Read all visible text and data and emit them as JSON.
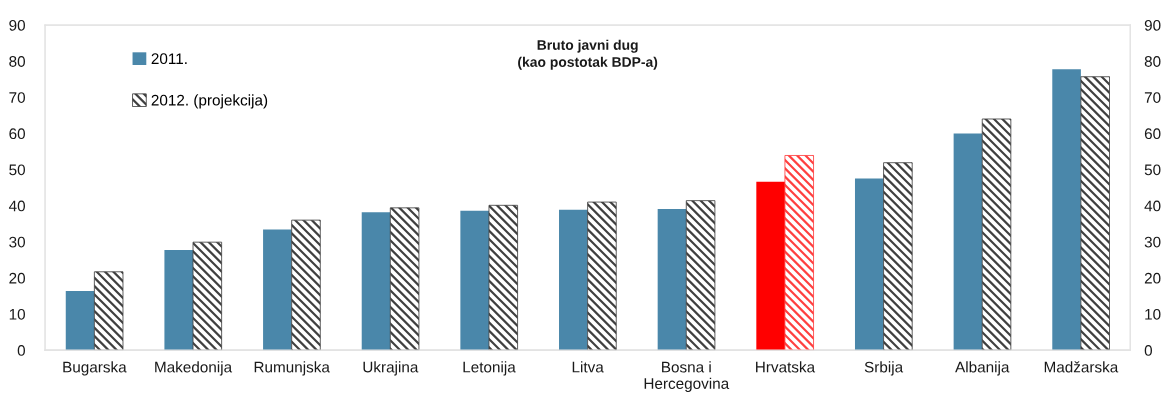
{
  "chart_data": {
    "type": "bar",
    "title": "Bruto javni dug\n(kao postotak BDP-a)",
    "categories": [
      "Bugarska",
      "Makedonija",
      "Rumunjska",
      "Ukrajina",
      "Letonija",
      "Litva",
      "Bosna i\nHercegovina",
      "Hrvatska",
      "Srbija",
      "Albanija",
      "Madžarska"
    ],
    "series": [
      {
        "name": "2011.",
        "color": "#4a87aa",
        "colors": [
          "#4a87aa",
          "#4a87aa",
          "#4a87aa",
          "#4a87aa",
          "#4a87aa",
          "#4a87aa",
          "#4a87aa",
          "#ff0000",
          "#4a87aa",
          "#4a87aa",
          "#4a87aa"
        ],
        "values": [
          16.4,
          27.7,
          33.4,
          38.2,
          38.6,
          38.9,
          39.1,
          46.6,
          47.5,
          60.0,
          77.8
        ]
      },
      {
        "name": "2012. (projekcija)",
        "color": "#404040",
        "colors": [
          "#404040",
          "#404040",
          "#404040",
          "#404040",
          "#404040",
          "#404040",
          "#404040",
          "#ff4040",
          "#404040",
          "#404040",
          "#404040"
        ],
        "values": [
          21.7,
          29.9,
          36.0,
          39.4,
          40.1,
          41.0,
          41.4,
          53.9,
          51.9,
          64.0,
          75.7
        ]
      }
    ],
    "ylim": [
      0,
      90
    ],
    "yticks": [
      0,
      10,
      20,
      30,
      40,
      50,
      60,
      70,
      80,
      90
    ],
    "y2lim": [
      0,
      90
    ],
    "y2ticks": [
      0,
      10,
      20,
      30,
      40,
      50,
      60,
      70,
      80,
      90
    ],
    "legend": "top left",
    "grid": false
  }
}
